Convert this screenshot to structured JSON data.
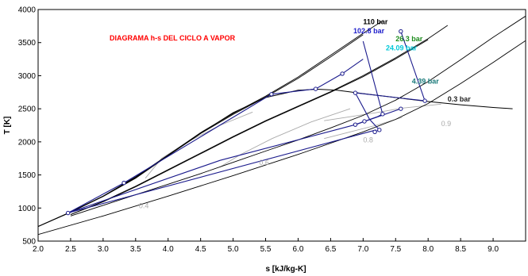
{
  "chart_data": {
    "type": "line",
    "title": "DIAGRAMA h-s DEL CICLO A VAPOR",
    "xlabel": "s [kJ/kg-K]",
    "ylabel": "T [K]",
    "xlim": [
      2.0,
      9.5
    ],
    "ylim": [
      500,
      4000
    ],
    "xticks": [
      "2.0",
      "2.5",
      "3.0",
      "3.5",
      "4.0",
      "4.5",
      "5.0",
      "5.5",
      "6.0",
      "6.5",
      "7.0",
      "7.5",
      "8.0",
      "8.5",
      "9.0"
    ],
    "yticks": [
      "500",
      "1000",
      "1500",
      "2000",
      "2500",
      "3000",
      "3500",
      "4000"
    ],
    "grid": false,
    "colors": {
      "isobar": "#000000",
      "cycle": "#1a1a8c",
      "quality": "#aaaaaa",
      "title": "#ff0000"
    },
    "isobars": [
      {
        "label": "110 bar",
        "color": "#000000",
        "points": [
          [
            2.0,
            720
          ],
          [
            2.5,
            940
          ],
          [
            3.0,
            1180
          ],
          [
            3.5,
            1460
          ],
          [
            4.0,
            1800
          ],
          [
            4.5,
            2140
          ],
          [
            5.0,
            2430
          ],
          [
            5.5,
            2690
          ],
          [
            6.0,
            2980
          ],
          [
            6.5,
            3310
          ],
          [
            7.0,
            3640
          ],
          [
            7.3,
            3830
          ]
        ]
      },
      {
        "label": "102.8 bar",
        "color": "#2222cc",
        "points": [
          [
            2.0,
            720
          ],
          [
            2.5,
            935
          ],
          [
            3.0,
            1175
          ],
          [
            3.5,
            1450
          ],
          [
            4.0,
            1790
          ],
          [
            4.5,
            2125
          ],
          [
            5.0,
            2415
          ],
          [
            5.5,
            2675
          ],
          [
            6.0,
            2960
          ],
          [
            6.5,
            3285
          ],
          [
            7.0,
            3620
          ]
        ]
      },
      {
        "label": "26.3 bar",
        "color": "#1d8c1d",
        "points": [
          [
            2.5,
            900
          ],
          [
            3.0,
            1100
          ],
          [
            3.5,
            1330
          ],
          [
            4.0,
            1580
          ],
          [
            4.5,
            1830
          ],
          [
            5.0,
            2080
          ],
          [
            5.5,
            2320
          ],
          [
            6.0,
            2540
          ],
          [
            6.5,
            2760
          ],
          [
            7.0,
            3000
          ],
          [
            7.5,
            3270
          ],
          [
            8.0,
            3560
          ],
          [
            8.3,
            3760
          ]
        ]
      },
      {
        "label": "24.09 bar",
        "color": "#00c8d8",
        "points": [
          [
            2.5,
            900
          ],
          [
            3.0,
            1095
          ],
          [
            3.5,
            1320
          ],
          [
            4.0,
            1570
          ],
          [
            4.5,
            1820
          ],
          [
            5.0,
            2070
          ],
          [
            5.5,
            2310
          ],
          [
            6.0,
            2530
          ],
          [
            6.5,
            2750
          ],
          [
            7.0,
            2985
          ],
          [
            7.5,
            3255
          ],
          [
            8.0,
            3545
          ]
        ]
      },
      {
        "label": "4.39 bar",
        "color": "#1a7a7a",
        "points": [
          [
            2.5,
            880
          ],
          [
            3.0,
            1040
          ],
          [
            3.5,
            1200
          ],
          [
            4.0,
            1360
          ],
          [
            4.5,
            1520
          ],
          [
            5.0,
            1690
          ],
          [
            5.5,
            1860
          ],
          [
            6.0,
            2030
          ],
          [
            6.5,
            2210
          ],
          [
            7.0,
            2400
          ],
          [
            7.5,
            2630
          ],
          [
            8.0,
            2910
          ],
          [
            8.5,
            3240
          ],
          [
            9.0,
            3580
          ],
          [
            9.5,
            3900
          ]
        ]
      },
      {
        "label": "0.3 bar",
        "color": "#222222",
        "points": [
          [
            2.0,
            600
          ],
          [
            3.0,
            880
          ],
          [
            4.0,
            1180
          ],
          [
            5.0,
            1490
          ],
          [
            6.0,
            1810
          ],
          [
            7.0,
            2150
          ],
          [
            7.5,
            2340
          ],
          [
            8.0,
            2580
          ],
          [
            8.5,
            2880
          ],
          [
            9.0,
            3200
          ],
          [
            9.5,
            3530
          ]
        ]
      }
    ],
    "saturation_dome": [
      [
        2.0,
        720
      ],
      [
        2.5,
        940
      ],
      [
        3.0,
        1180
      ],
      [
        3.5,
        1470
      ],
      [
        4.0,
        1800
      ],
      [
        4.5,
        2130
      ],
      [
        5.0,
        2440
      ],
      [
        5.5,
        2670
      ],
      [
        6.0,
        2780
      ],
      [
        6.3,
        2795
      ],
      [
        6.6,
        2780
      ],
      [
        7.0,
        2730
      ],
      [
        7.5,
        2670
      ],
      [
        8.0,
        2610
      ],
      [
        8.5,
        2560
      ],
      [
        9.0,
        2520
      ],
      [
        9.3,
        2500
      ]
    ],
    "quality_lines": [
      {
        "label": "0.4",
        "points": [
          [
            3.65,
            1450
          ],
          [
            3.9,
            1750
          ],
          [
            4.3,
            2000
          ],
          [
            4.8,
            2250
          ],
          [
            5.3,
            2450
          ]
        ]
      },
      {
        "label": "0.6",
        "points": [
          [
            4.8,
            1620
          ],
          [
            5.1,
            1800
          ],
          [
            5.6,
            2050
          ],
          [
            6.2,
            2300
          ],
          [
            6.8,
            2500
          ]
        ]
      },
      {
        "label": "0.8",
        "points": [
          [
            6.4,
            2050
          ],
          [
            6.8,
            2150
          ],
          [
            7.2,
            2250
          ],
          [
            7.6,
            2370
          ]
        ]
      },
      {
        "label": "0.9",
        "points": [
          [
            6.4,
            2320
          ],
          [
            6.8,
            2380
          ],
          [
            7.2,
            2440
          ],
          [
            7.6,
            2510
          ],
          [
            8.2,
            2570
          ]
        ]
      }
    ],
    "cycle_paths": [
      [
        [
          2.46,
          925
        ],
        [
          3.32,
          1380
        ],
        [
          5.59,
          2720
        ],
        [
          6.27,
          2800
        ],
        [
          6.68,
          3030
        ],
        [
          7.0,
          3250
        ]
      ],
      [
        [
          7.0,
          3520
        ],
        [
          7.3,
          2420
        ],
        [
          7.22,
          2380
        ],
        [
          7.02,
          2310
        ],
        [
          6.88,
          2260
        ]
      ],
      [
        [
          6.88,
          2740
        ],
        [
          7.1,
          2340
        ],
        [
          7.25,
          2180
        ],
        [
          7.18,
          2150
        ]
      ],
      [
        [
          7.58,
          3670
        ],
        [
          7.95,
          2620
        ],
        [
          6.88,
          2740
        ]
      ],
      [
        [
          2.46,
          925
        ],
        [
          4.8,
          1720
        ],
        [
          6.88,
          2260
        ],
        [
          7.58,
          2500
        ]
      ],
      [
        [
          2.46,
          925
        ],
        [
          7.2,
          2180
        ]
      ]
    ],
    "state_points": [
      [
        2.46,
        925
      ],
      [
        3.32,
        1380
      ],
      [
        5.59,
        2720
      ],
      [
        6.27,
        2800
      ],
      [
        6.68,
        3030
      ],
      [
        7.58,
        3670
      ],
      [
        7.95,
        2620
      ],
      [
        6.88,
        2740
      ],
      [
        7.3,
        2420
      ],
      [
        7.02,
        2310
      ],
      [
        6.88,
        2260
      ],
      [
        7.25,
        2180
      ],
      [
        7.18,
        2150
      ],
      [
        7.58,
        2500
      ]
    ],
    "iso_label_positions": [
      {
        "label": "110 bar",
        "x": 7.0,
        "y": 3780
      },
      {
        "label": "102.8 bar",
        "x": 6.85,
        "y": 3640
      },
      {
        "label": "26.3 bar",
        "x": 7.5,
        "y": 3520
      },
      {
        "label": "24.09 bar",
        "x": 7.35,
        "y": 3380
      },
      {
        "label": "4.39 bar",
        "x": 7.75,
        "y": 2880
      },
      {
        "label": "0.3 bar",
        "x": 8.3,
        "y": 2610
      }
    ],
    "quality_label_positions": [
      {
        "label": "0.4",
        "x": 3.55,
        "y": 1000
      },
      {
        "label": "0.6",
        "x": 5.4,
        "y": 1650
      },
      {
        "label": "0.8",
        "x": 7.0,
        "y": 1990
      },
      {
        "label": "0.9",
        "x": 8.2,
        "y": 2240
      }
    ]
  }
}
